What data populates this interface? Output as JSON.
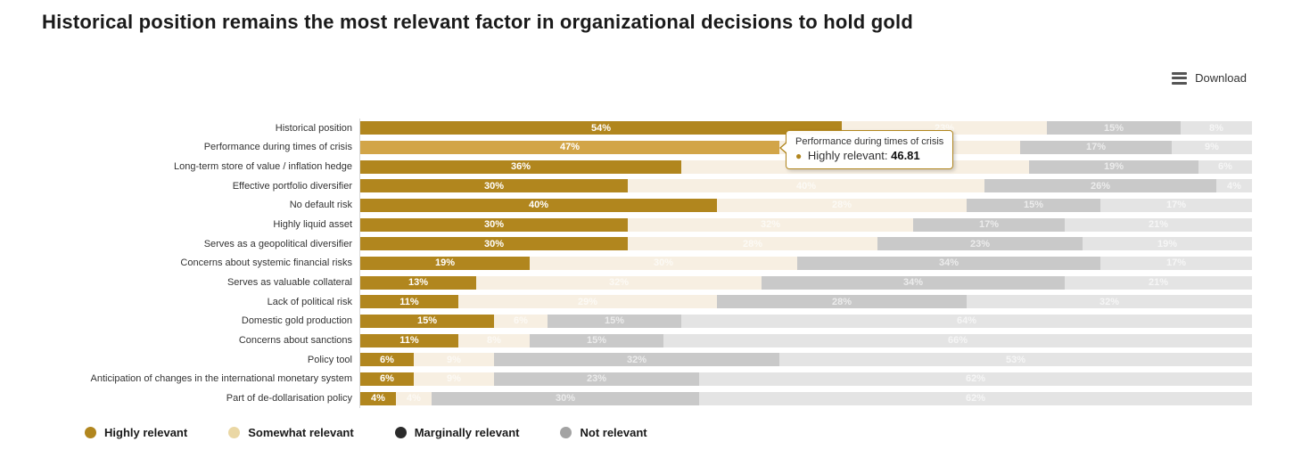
{
  "title": "Historical position remains the most relevant factor in organizational decisions to hold gold",
  "toolbar": {
    "download_label": "Download",
    "download_icon": "hamburger-menu-icon"
  },
  "legend": [
    {
      "label": "Highly relevant",
      "color": "#b1861e"
    },
    {
      "label": "Somewhat relevant",
      "color": "#ead7a4"
    },
    {
      "label": "Marginally relevant",
      "color": "#2b2b2b"
    },
    {
      "label": "Not relevant",
      "color": "#a3a3a3"
    }
  ],
  "tooltip": {
    "category": "Performance during times of crisis",
    "bullet": "●",
    "series_label": "Highly relevant:",
    "value": "46.81"
  },
  "colors": {
    "highly_relevant_bar": "#b1861e",
    "highly_relevant_hovered_bar": "#d2a548",
    "somewhat_relevant_dimmed": "#f7efe2",
    "marginally_relevant_dimmed": "#c9c9c9",
    "not_relevant_dimmed": "#e4e4e4",
    "axis_line": "#d9d9d9"
  },
  "chart_data": {
    "type": "bar",
    "stacked": true,
    "orientation": "horizontal",
    "unit": "%",
    "xlim": [
      0,
      100
    ],
    "grid": false,
    "legend_position": "bottom",
    "highlighted_category_index": 1,
    "highlighted_series": "Highly relevant",
    "categories": [
      "Historical position",
      "Performance during times of crisis",
      "Long-term store of value / inflation hedge",
      "Effective portfolio diversifier",
      "No default risk",
      "Highly liquid asset",
      "Serves as a geopolitical diversifier",
      "Concerns about systemic financial risks",
      "Serves as valuable collateral",
      "Lack of political risk",
      "Domestic gold production",
      "Concerns about sanctions",
      "Policy tool",
      "Anticipation of changes in the international monetary system",
      "Part of de-dollarisation policy"
    ],
    "series": [
      {
        "name": "Highly relevant",
        "values": [
          54,
          47,
          36,
          30,
          40,
          30,
          30,
          19,
          13,
          11,
          15,
          11,
          6,
          6,
          4
        ]
      },
      {
        "name": "Somewhat relevant",
        "values": [
          23,
          27,
          39,
          40,
          28,
          32,
          28,
          30,
          32,
          29,
          6,
          8,
          9,
          9,
          4
        ]
      },
      {
        "name": "Marginally relevant",
        "values": [
          15,
          17,
          19,
          26,
          15,
          17,
          23,
          34,
          34,
          28,
          15,
          15,
          32,
          23,
          30
        ]
      },
      {
        "name": "Not relevant",
        "values": [
          8,
          9,
          6,
          4,
          17,
          21,
          19,
          17,
          21,
          32,
          64,
          66,
          53,
          62,
          62
        ]
      }
    ]
  }
}
